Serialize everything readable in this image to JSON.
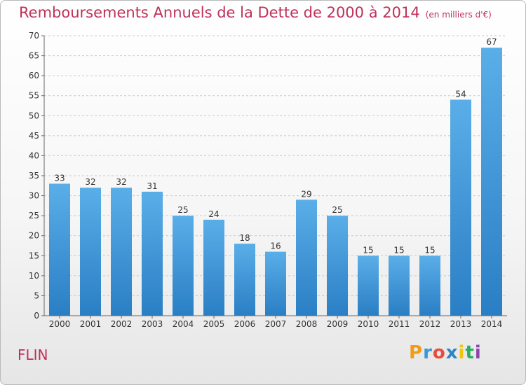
{
  "chart_data": {
    "type": "bar",
    "title": "Remboursements Annuels de la Dette de 2000 à 2014",
    "unit_note": "(en milliers d'€)",
    "categories": [
      "2000",
      "2001",
      "2002",
      "2003",
      "2004",
      "2005",
      "2006",
      "2007",
      "2008",
      "2009",
      "2010",
      "2011",
      "2012",
      "2013",
      "2014"
    ],
    "values": [
      33,
      32,
      32,
      31,
      25,
      24,
      18,
      16,
      29,
      25,
      15,
      15,
      15,
      54,
      67
    ],
    "ylim": [
      0,
      70
    ],
    "yticks": [
      0,
      5,
      10,
      15,
      20,
      25,
      30,
      35,
      40,
      45,
      50,
      55,
      60,
      65,
      70
    ],
    "grid": true,
    "bar_color": "#3a8fd6"
  },
  "commune": "FLIN",
  "brand": {
    "name": "Proxiti",
    "letters": [
      {
        "char": "P",
        "color": "#f39c12"
      },
      {
        "char": "r",
        "color": "#3498db"
      },
      {
        "char": "o",
        "color": "#e74c3c"
      },
      {
        "char": "x",
        "color": "#2e86c1"
      },
      {
        "char": "i",
        "color": "#f1c40f"
      },
      {
        "char": "t",
        "color": "#27ae60"
      },
      {
        "char": "i",
        "color": "#8e44ad"
      }
    ]
  }
}
